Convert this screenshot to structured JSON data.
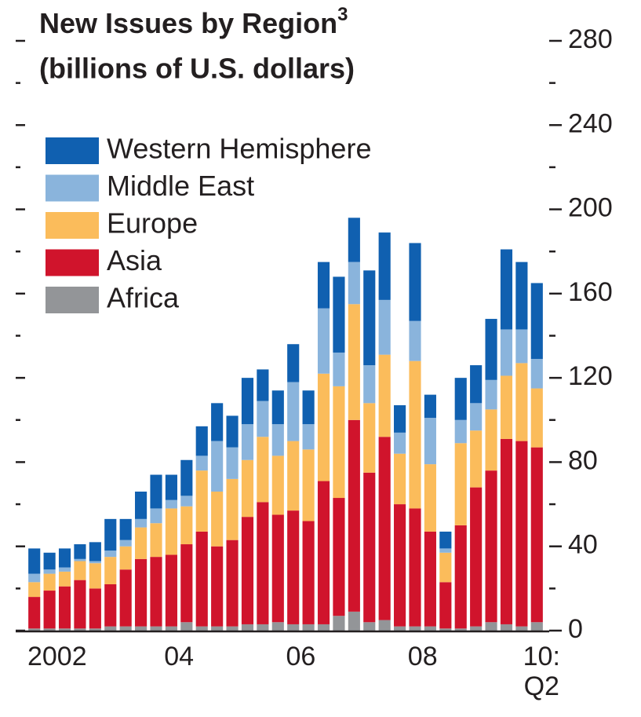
{
  "chart_data": {
    "type": "stacked_bar",
    "title": "New Issues by Region",
    "title_superscript": "3",
    "subtitle": "(billions of U.S. dollars)",
    "categories": [
      "2002",
      null,
      null,
      null,
      null,
      null,
      null,
      null,
      "04",
      null,
      null,
      null,
      null,
      null,
      null,
      null,
      "06",
      null,
      null,
      null,
      null,
      null,
      null,
      null,
      "08",
      null,
      null,
      null,
      null,
      null,
      null,
      null,
      null,
      "10: Q2"
    ],
    "series": [
      {
        "name": "Africa",
        "color": "#939598",
        "values": [
          1,
          1,
          1,
          1,
          1,
          2,
          2,
          2,
          2,
          2,
          4,
          2,
          2,
          2,
          3,
          3,
          4,
          3,
          3,
          3,
          7,
          9,
          4,
          5,
          2,
          2,
          2,
          1,
          1,
          2,
          4,
          3,
          2,
          4
        ]
      },
      {
        "name": "Asia",
        "color": "#d0142c",
        "values": [
          15,
          18,
          20,
          23,
          19,
          20,
          27,
          32,
          33,
          34,
          37,
          45,
          38,
          41,
          51,
          58,
          51,
          54,
          49,
          68,
          56,
          91,
          71,
          87,
          58,
          56,
          45,
          22,
          49,
          66,
          72,
          88,
          88,
          83
        ]
      },
      {
        "name": "Europe",
        "color": "#fbbc5b",
        "values": [
          7,
          8,
          7,
          9,
          12,
          13,
          11,
          15,
          16,
          22,
          18,
          29,
          26,
          29,
          27,
          31,
          28,
          33,
          34,
          51,
          53,
          55,
          33,
          39,
          24,
          70,
          32,
          14,
          39,
          27,
          29,
          30,
          37,
          28
        ]
      },
      {
        "name": "Middle East",
        "color": "#8ab4dc",
        "values": [
          4,
          2,
          2,
          1,
          1,
          3,
          3,
          4,
          7,
          4,
          5,
          7,
          24,
          15,
          17,
          17,
          15,
          28,
          12,
          31,
          16,
          20,
          18,
          26,
          10,
          19,
          22,
          2,
          11,
          13,
          14,
          22,
          16,
          14
        ]
      },
      {
        "name": "Western Hemisphere",
        "color": "#1060b0",
        "values": [
          12,
          8,
          9,
          7,
          9,
          15,
          10,
          13,
          16,
          12,
          17,
          14,
          18,
          15,
          22,
          15,
          16,
          18,
          16,
          22,
          36,
          21,
          45,
          32,
          13,
          37,
          11,
          8,
          20,
          18,
          29,
          38,
          32,
          36
        ]
      }
    ],
    "ylim": [
      0,
      280
    ],
    "yticks": [
      0,
      40,
      80,
      120,
      160,
      200,
      240,
      280
    ],
    "yminorticks": [
      20,
      60,
      100,
      140,
      180,
      220,
      260
    ],
    "legend": "upper left"
  }
}
